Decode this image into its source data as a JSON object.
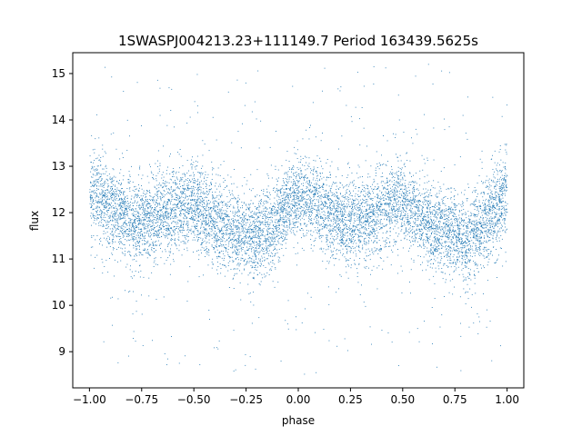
{
  "chart_data": {
    "type": "scatter",
    "title": "1SWASPJ004213.23+111149.7 Period 163439.5625s",
    "xlabel": "phase",
    "ylabel": "flux",
    "xlim": [
      -1.08,
      1.08
    ],
    "ylim": [
      8.22,
      15.45
    ],
    "xticks": [
      -1.0,
      -0.75,
      -0.5,
      -0.25,
      0.0,
      0.25,
      0.5,
      0.75,
      1.0
    ],
    "xtick_labels": [
      "−1.00",
      "−0.75",
      "−0.50",
      "−0.25",
      "0.00",
      "0.25",
      "0.50",
      "0.75",
      "1.00"
    ],
    "yticks": [
      9,
      10,
      11,
      12,
      13,
      14,
      15
    ],
    "ytick_labels": [
      "9",
      "10",
      "11",
      "12",
      "13",
      "14",
      "15"
    ],
    "grid": false,
    "marker_color": "#1f77b4",
    "phase_range": [
      -1.0,
      1.0
    ],
    "baseline_flux": 12.0,
    "scatter_sigma": 0.45,
    "light_curve_profile": [
      {
        "phase": 0.0,
        "flux": 12.45
      },
      {
        "phase": 0.1,
        "flux": 12.15
      },
      {
        "phase": 0.2,
        "flux": 11.8
      },
      {
        "phase": 0.3,
        "flux": 11.85
      },
      {
        "phase": 0.4,
        "flux": 12.05
      },
      {
        "phase": 0.5,
        "flux": 12.2
      },
      {
        "phase": 0.55,
        "flux": 12.0
      },
      {
        "phase": 0.65,
        "flux": 11.7
      },
      {
        "phase": 0.8,
        "flux": 11.4
      },
      {
        "phase": 0.9,
        "flux": 11.85
      },
      {
        "phase": 1.0,
        "flux": 12.45
      }
    ]
  }
}
